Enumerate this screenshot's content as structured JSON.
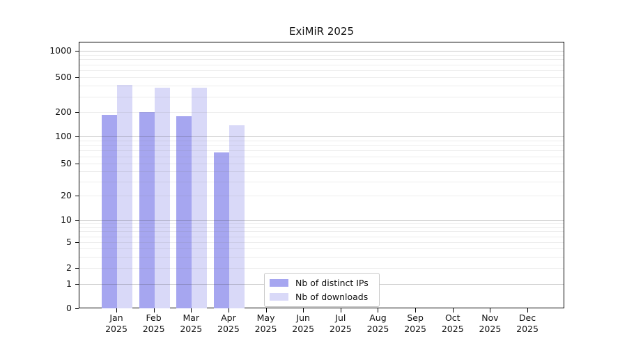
{
  "title": "ExiMiR 2025",
  "colors": {
    "ips": "#a6a6f0",
    "downloads": "#d9d9f8",
    "axis": "#000000",
    "grid_minor_rgba": "rgba(120,120,120,0.14)",
    "grid_major_rgba": "rgba(60,60,60,0.28)",
    "legend_border": "#c9c9c9"
  },
  "legend": {
    "items": [
      {
        "key": "ips",
        "label": "Nb of distinct IPs"
      },
      {
        "key": "downloads",
        "label": "Nb of downloads"
      }
    ]
  },
  "chart_data": {
    "type": "bar",
    "title": "ExiMiR 2025",
    "categories": [
      "Jan",
      "Feb",
      "Mar",
      "Apr",
      "May",
      "Jun",
      "Jul",
      "Aug",
      "Sep",
      "Oct",
      "Nov",
      "Dec"
    ],
    "year_label": "2025",
    "series": [
      {
        "name": "Nb of distinct IPs",
        "color_key": "ips",
        "values": [
          190,
          205,
          180,
          68,
          0,
          0,
          0,
          0,
          0,
          0,
          0,
          0
        ]
      },
      {
        "name": "Nb of downloads",
        "color_key": "downloads",
        "values": [
          420,
          385,
          385,
          140,
          0,
          0,
          0,
          0,
          0,
          0,
          0,
          0
        ]
      }
    ],
    "yticks": [
      0,
      1,
      2,
      5,
      10,
      20,
      50,
      100,
      200,
      500,
      1000
    ],
    "ylim": [
      0,
      1000
    ],
    "scale": "log-like (ticks 0,1,2,5,10,20,50,100,200,500,1000)",
    "xlabel": "",
    "ylabel": "",
    "grid": "horizontal log gridlines, decades darker",
    "legend_position": "inside bottom-center"
  }
}
